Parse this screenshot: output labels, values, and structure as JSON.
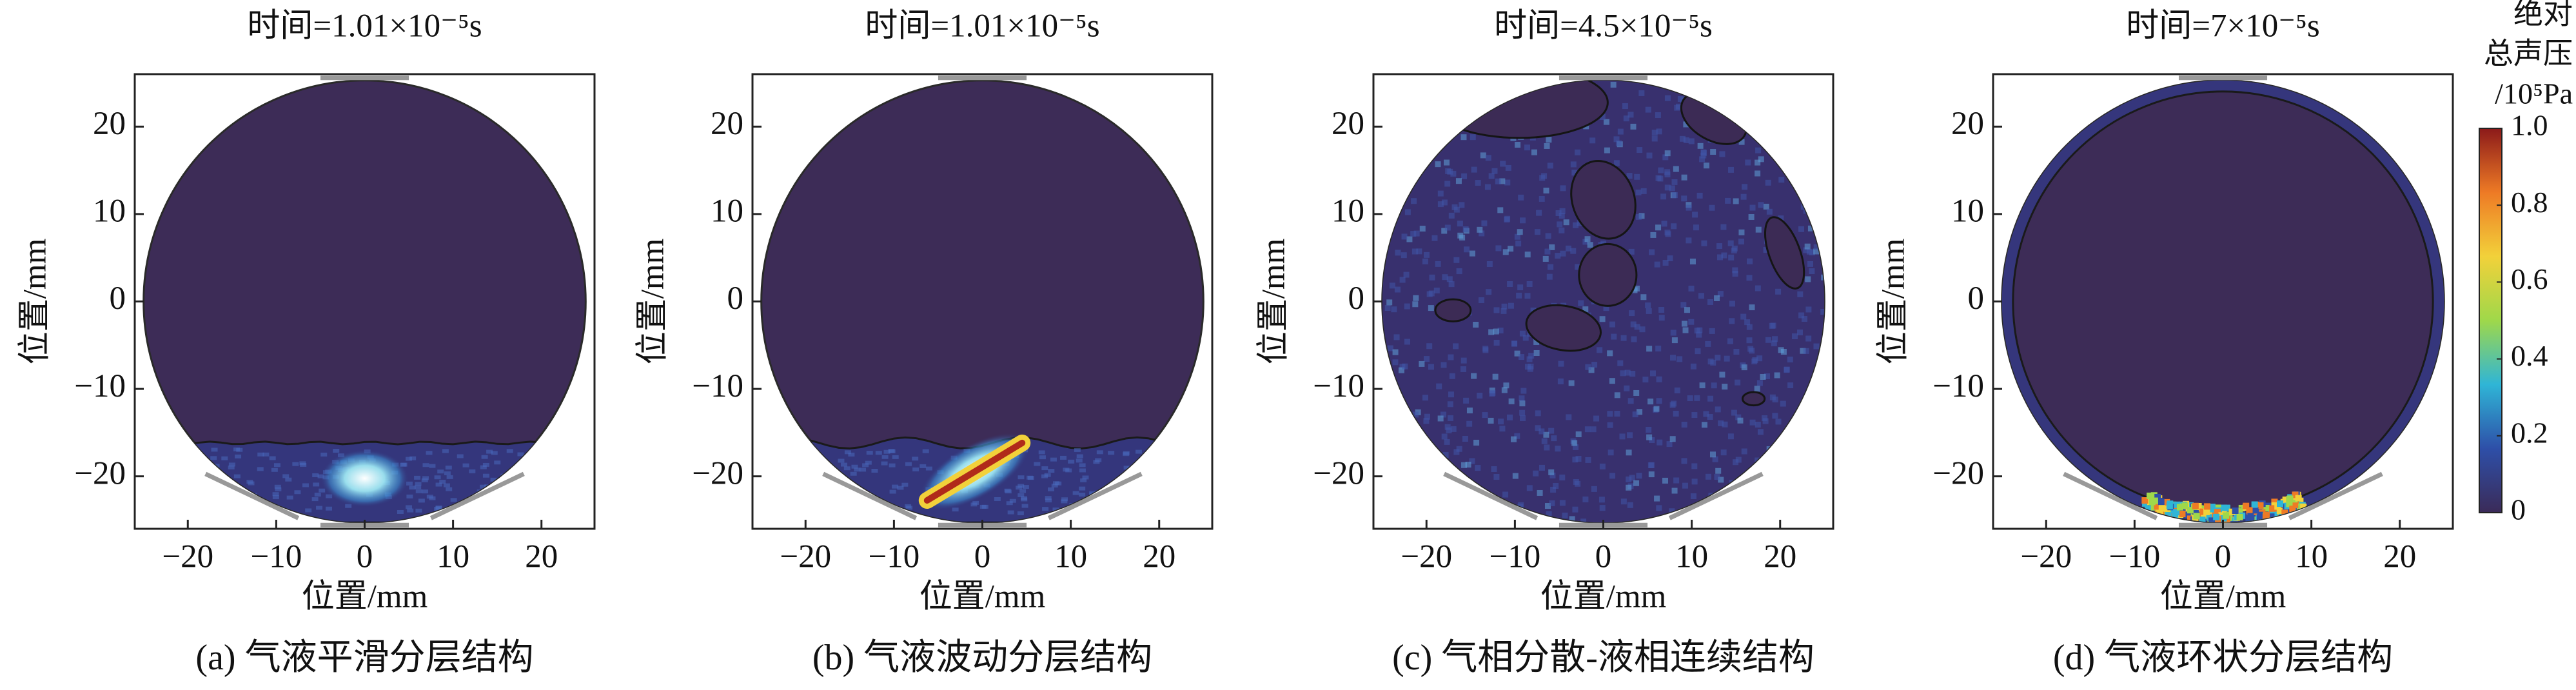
{
  "chart_data": [
    {
      "type": "field",
      "pattern": "smooth",
      "title": "时间=1.01×10⁻⁵s",
      "xlabel": "位置/mm",
      "ylabel": "位置/mm",
      "caption": "(a) 气液平滑分层结构",
      "xlim": [
        -26,
        26
      ],
      "ylim": [
        -26,
        26
      ],
      "radius": 25,
      "xticks": [
        {
          "value": -20,
          "label": "−20"
        },
        {
          "value": -10,
          "label": "−10"
        },
        0,
        10,
        20
      ],
      "yticks": [
        {
          "value": -20,
          "label": "−20"
        },
        {
          "value": -10,
          "label": "−10"
        },
        0,
        10,
        20
      ]
    },
    {
      "type": "field",
      "pattern": "wavy",
      "title": "时间=1.01×10⁻⁵s",
      "xlabel": "位置/mm",
      "ylabel": "位置/mm",
      "caption": "(b) 气液波动分层结构",
      "xlim": [
        -26,
        26
      ],
      "ylim": [
        -26,
        26
      ],
      "radius": 25,
      "xticks": [
        {
          "value": -20,
          "label": "−20"
        },
        {
          "value": -10,
          "label": "−10"
        },
        0,
        10,
        20
      ],
      "yticks": [
        {
          "value": -20,
          "label": "−20"
        },
        {
          "value": -10,
          "label": "−10"
        },
        0,
        10,
        20
      ]
    },
    {
      "type": "field",
      "pattern": "dispersed",
      "title": "时间=4.5×10⁻⁵s",
      "xlabel": "位置/mm",
      "ylabel": "位置/mm",
      "caption": "(c) 气相分散-液相连续结构",
      "xlim": [
        -26,
        26
      ],
      "ylim": [
        -26,
        26
      ],
      "radius": 25,
      "xticks": [
        {
          "value": -20,
          "label": "−20"
        },
        {
          "value": -10,
          "label": "−10"
        },
        0,
        10,
        20
      ],
      "yticks": [
        {
          "value": -20,
          "label": "−20"
        },
        {
          "value": -10,
          "label": "−10"
        },
        0,
        10,
        20
      ]
    },
    {
      "type": "field",
      "pattern": "annular",
      "title": "时间=7×10⁻⁵s",
      "xlabel": "位置/mm",
      "ylabel": "位置/mm",
      "caption": "(d) 气液环状分层结构",
      "xlim": [
        -26,
        26
      ],
      "ylim": [
        -26,
        26
      ],
      "radius": 25,
      "xticks": [
        {
          "value": -20,
          "label": "−20"
        },
        {
          "value": -10,
          "label": "−10"
        },
        0,
        10,
        20
      ],
      "yticks": [
        {
          "value": -20,
          "label": "−20"
        },
        {
          "value": -10,
          "label": "−10"
        },
        0,
        10,
        20
      ]
    },
    {
      "type": "colorbar",
      "title": [
        "绝对",
        "总声压",
        "/10⁵Pa"
      ],
      "ylim": [
        0,
        1
      ],
      "yticks": [
        0,
        0.2,
        0.4,
        0.6,
        0.8,
        {
          "value": 1,
          "label": "1.0"
        }
      ],
      "colors": [
        "#3b2b58",
        "#2e4fa8",
        "#2fb5d6",
        "#9fd84a",
        "#f2d13a",
        "#ee7a25",
        "#8b1a1a"
      ]
    }
  ]
}
